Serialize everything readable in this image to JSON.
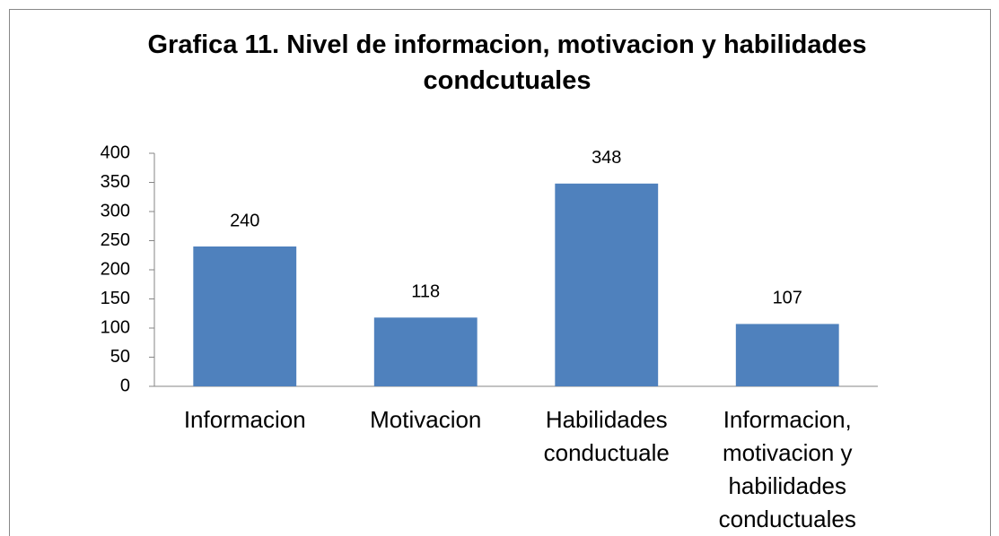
{
  "chart_data": {
    "type": "bar",
    "title": "Grafica 11. Nivel de informacion, motivacion y habilidades condcutuales",
    "categories": [
      "Informacion",
      "Motivacion",
      "Habilidades conductuale",
      "Informacion, motivacion y habilidades conductuales"
    ],
    "values": [
      240,
      118,
      348,
      107
    ],
    "color": "#4f81bd",
    "ylim": [
      0,
      400
    ],
    "yticks": [
      0,
      50,
      100,
      150,
      200,
      250,
      300,
      350,
      400
    ],
    "grid": false
  }
}
